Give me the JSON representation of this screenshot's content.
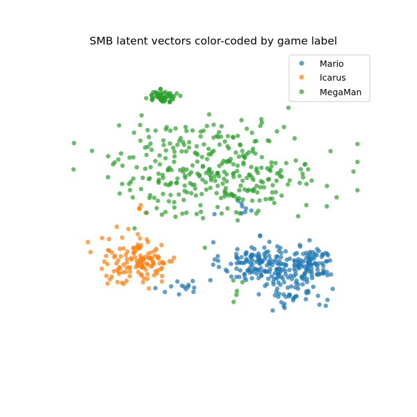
{
  "chart_data": {
    "type": "scatter",
    "title": "SMB latent vectors color-coded by game label",
    "xlabel": "",
    "ylabel": "",
    "axes_visible": false,
    "grid": false,
    "legend_position": "top-right",
    "point_alpha": 0.7,
    "series": [
      {
        "name": "Mario",
        "color": "#1f77b4",
        "clusters": [
          {
            "center": [
              0.3,
              -0.03
            ],
            "sd": [
              0.13,
              0.065
            ],
            "n": 150
          },
          {
            "center": [
              0.64,
              -0.04
            ],
            "sd": [
              0.075,
              0.055
            ],
            "n": 95
          },
          {
            "center": [
              0.53,
              -0.2
            ],
            "sd": [
              0.1,
              0.05
            ],
            "n": 45
          },
          {
            "center": [
              -0.2,
              -0.17
            ],
            "sd": [
              0.08,
              0.035
            ],
            "n": 14
          },
          {
            "center": [
              0.2,
              0.3
            ],
            "sd": [
              0.08,
              0.04
            ],
            "n": 8
          }
        ]
      },
      {
        "name": "Icarus",
        "color": "#ff7f0e",
        "clusters": [
          {
            "center": [
              -0.52,
              -0.02
            ],
            "sd": [
              0.13,
              0.075
            ],
            "n": 130
          },
          {
            "center": [
              -0.5,
              0.31
            ],
            "sd": [
              0.03,
              0.03
            ],
            "n": 4
          }
        ]
      },
      {
        "name": "MegaMan",
        "color": "#2ca02c",
        "clusters": [
          {
            "center": [
              0.0,
              0.54
            ],
            "sd": [
              0.35,
              0.145
            ],
            "n": 330
          },
          {
            "center": [
              -0.36,
              0.975
            ],
            "sd": [
              0.045,
              0.018
            ],
            "n": 60
          },
          {
            "center": [
              0.17,
              -0.15
            ],
            "sd": [
              0.05,
              0.04
            ],
            "n": 5
          }
        ]
      }
    ],
    "xlim": [
      -1.0,
      1.0
    ],
    "ylim": [
      -0.6,
      1.2
    ]
  }
}
